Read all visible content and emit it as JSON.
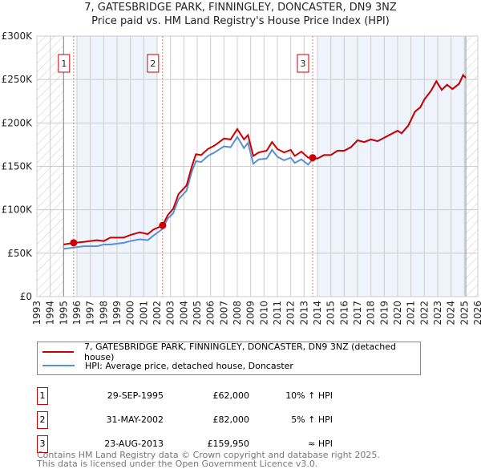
{
  "chart_data": {
    "type": "line",
    "title": "7, GATESBRIDGE PARK, FINNINGLEY, DONCASTER, DN9 3NZ",
    "subtitle": "Price paid vs. HM Land Registry's House Price Index (HPI)",
    "xlim": [
      1993,
      2026
    ],
    "ylim": [
      0,
      300000
    ],
    "x_ticks": [
      "1993",
      "1994",
      "1995",
      "1996",
      "1997",
      "1998",
      "1999",
      "2000",
      "2001",
      "2002",
      "2003",
      "2004",
      "2005",
      "2006",
      "2007",
      "2008",
      "2009",
      "2010",
      "2011",
      "2012",
      "2013",
      "2014",
      "2015",
      "2016",
      "2017",
      "2018",
      "2019",
      "2020",
      "2021",
      "2022",
      "2023",
      "2024",
      "2025",
      "2026"
    ],
    "y_ticks": [
      {
        "v": 0,
        "label": "£0"
      },
      {
        "v": 50000,
        "label": "£50K"
      },
      {
        "v": 100000,
        "label": "£100K"
      },
      {
        "v": 150000,
        "label": "£150K"
      },
      {
        "v": 200000,
        "label": "£200K"
      },
      {
        "v": 250000,
        "label": "£250K"
      },
      {
        "v": 300000,
        "label": "£300K"
      }
    ],
    "series": [
      {
        "name": "7, GATESBRIDGE PARK, FINNINGLEY, DONCASTER, DN9 3NZ (detached house)",
        "color": "#cc0000",
        "x": [
          1995.0,
          1995.75,
          1996.5,
          1997.5,
          1998,
          1998.5,
          1999.5,
          2000,
          2000.7,
          2001.3,
          2001.7,
          2002.41,
          2002.8,
          2003.2,
          2003.6,
          2004.2,
          2004.6,
          2004.9,
          2005.3,
          2005.8,
          2006.3,
          2007,
          2007.5,
          2008,
          2008.5,
          2008.8,
          2009.2,
          2009.6,
          2010.2,
          2010.6,
          2011,
          2011.5,
          2012,
          2012.3,
          2012.8,
          2013.3,
          2013.64,
          2014,
          2014.5,
          2015,
          2015.5,
          2016,
          2016.5,
          2017,
          2017.5,
          2018,
          2018.5,
          2019,
          2019.5,
          2020,
          2020.3,
          2020.8,
          2021.3,
          2021.7,
          2022,
          2022.5,
          2022.9,
          2023.3,
          2023.7,
          2024.1,
          2024.6,
          2024.9,
          2025.1
        ],
        "y": [
          60000,
          62000,
          63000,
          65000,
          64000,
          68000,
          68000,
          71000,
          74000,
          72000,
          77000,
          82000,
          94000,
          101000,
          118000,
          128000,
          150000,
          164000,
          163000,
          170000,
          174000,
          182000,
          181000,
          193000,
          181000,
          186000,
          162000,
          166000,
          168000,
          178000,
          170000,
          166000,
          169000,
          162000,
          167000,
          160000,
          159950,
          159000,
          163000,
          163000,
          168000,
          168000,
          172000,
          180000,
          178000,
          181000,
          179000,
          183000,
          187000,
          191000,
          188000,
          197000,
          213000,
          218000,
          227000,
          237000,
          248000,
          238000,
          244000,
          239000,
          245000,
          255000,
          252000
        ]
      },
      {
        "name": "HPI: Average price, detached house, Doncaster",
        "color": "#5b8fd0",
        "x": [
          1995.0,
          1995.75,
          1996.5,
          1997.5,
          1998,
          1998.5,
          1999.5,
          2000,
          2000.7,
          2001.3,
          2001.7,
          2002.41,
          2002.8,
          2003.2,
          2003.6,
          2004.2,
          2004.6,
          2004.9,
          2005.3,
          2005.8,
          2006.3,
          2007,
          2007.5,
          2008,
          2008.5,
          2008.8,
          2009.2,
          2009.6,
          2010.2,
          2010.6,
          2011,
          2011.5,
          2012,
          2012.3,
          2012.8,
          2013.3,
          2013.64,
          2014,
          2014.5,
          2015,
          2015.5,
          2016,
          2016.5,
          2017,
          2017.5,
          2018,
          2018.5,
          2019,
          2019.5,
          2020,
          2020.3,
          2020.8,
          2021.3,
          2021.7,
          2022,
          2022.5,
          2022.9,
          2023.3,
          2023.7,
          2024.1,
          2024.6,
          2024.9,
          2025.1
        ],
        "y": [
          55000,
          56500,
          58000,
          58000,
          60000,
          60000,
          62000,
          64000,
          66000,
          65000,
          70000,
          78000,
          90000,
          96000,
          112000,
          122000,
          144000,
          156000,
          155000,
          162000,
          166000,
          173000,
          172000,
          184000,
          171000,
          177000,
          153000,
          158000,
          159000,
          169000,
          161000,
          157000,
          160000,
          154000,
          158000,
          152000,
          158000,
          159000,
          163000,
          163000,
          168000,
          168000,
          172000,
          180000,
          178000,
          181000,
          179000,
          183000,
          187000,
          191000,
          188000,
          197000,
          213000,
          218000,
          227000,
          237000,
          248000,
          238000,
          244000,
          239000,
          245000,
          255000,
          252000
        ]
      }
    ],
    "sales": [
      {
        "num": "1",
        "x": 1995.75,
        "y": 62000,
        "date": "29-SEP-1995",
        "price": "£62,000",
        "hpi": "10% ↑ HPI"
      },
      {
        "num": "2",
        "x": 2002.41,
        "y": 82000,
        "date": "31-MAY-2002",
        "price": "£82,000",
        "hpi": "5% ↑ HPI"
      },
      {
        "num": "3",
        "x": 2013.64,
        "y": 159950,
        "date": "23-AUG-2013",
        "price": "£159,950",
        "hpi": "≈ HPI"
      }
    ],
    "shaded": [
      [
        1996,
        2002
      ],
      [
        2014,
        2025
      ]
    ],
    "hatched": [
      [
        1993,
        1995
      ],
      [
        2025.1,
        2026
      ]
    ],
    "legend_placement": "below"
  },
  "footer": [
    "Contains HM Land Registry data © Crown copyright and database right 2025.",
    "This data is licensed under the Open Government Licence v3.0."
  ]
}
